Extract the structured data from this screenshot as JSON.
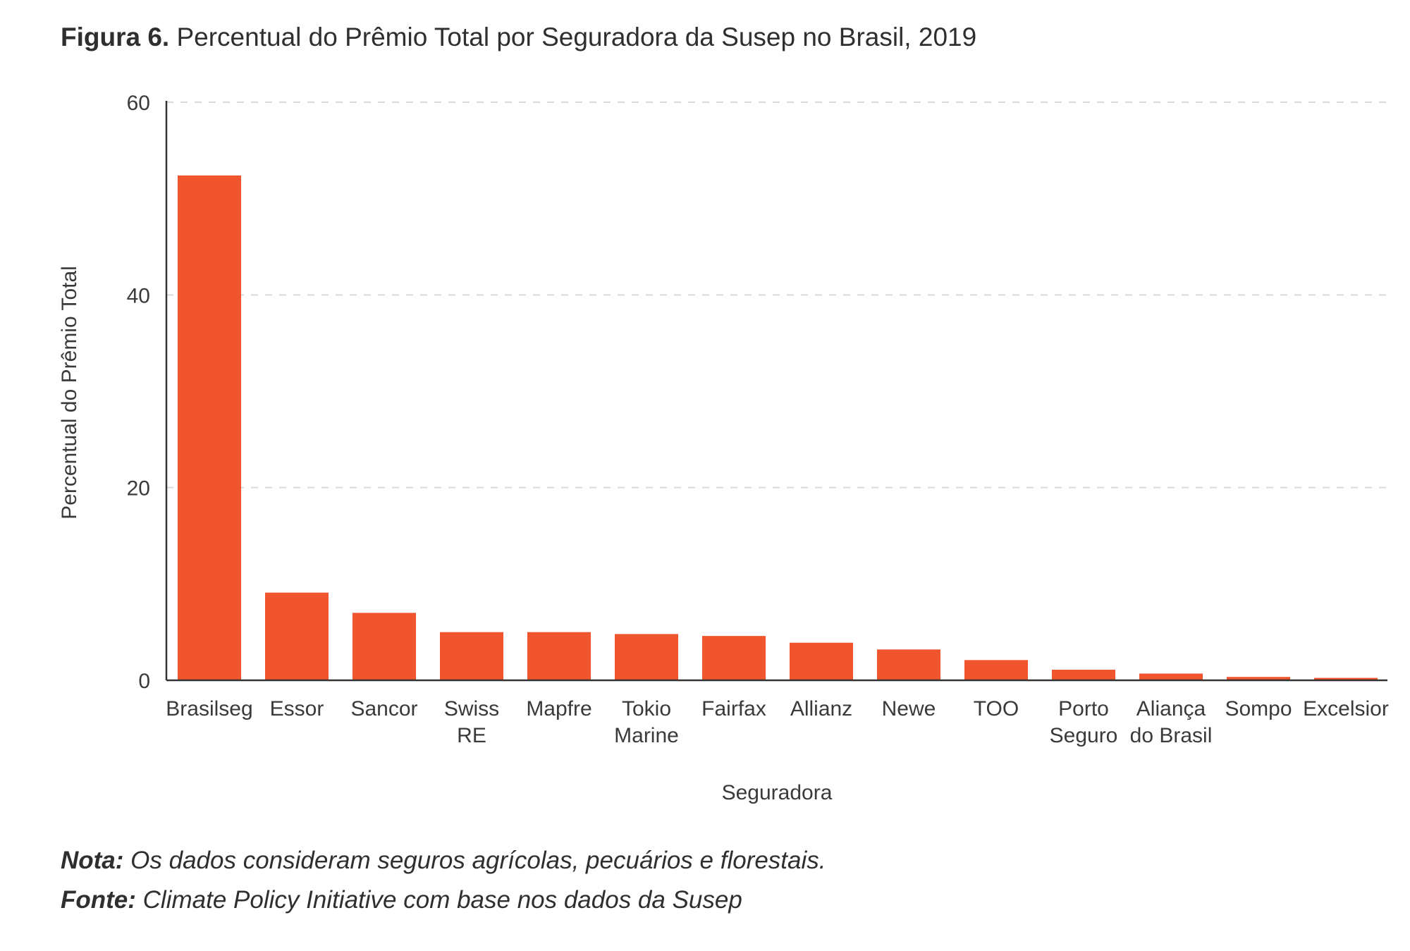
{
  "title": {
    "figure_label": "Figura 6.",
    "text": "Percentual do Prêmio Total por Seguradora da Susep no Brasil, 2019"
  },
  "colors": {
    "bar": "#f0552d",
    "axis": "#333333",
    "grid": "#d9d9d9",
    "text": "#3a3a3a"
  },
  "chart_data": {
    "type": "bar",
    "title": "Percentual do Prêmio Total por Seguradora da Susep no Brasil, 2019",
    "xlabel": "Seguradora",
    "ylabel": "Percentual do Prêmio Total",
    "ylim": [
      0,
      60
    ],
    "yticks": [
      "0",
      "20",
      "40",
      "60"
    ],
    "grid": "horizontal dashed",
    "legend": "none",
    "categories": [
      [
        "Brasilseg"
      ],
      [
        "Essor"
      ],
      [
        "Sancor"
      ],
      [
        "Swiss",
        "RE"
      ],
      [
        "Mapfre"
      ],
      [
        "Tokio",
        "Marine"
      ],
      [
        "Fairfax"
      ],
      [
        "Allianz"
      ],
      [
        "Newe"
      ],
      [
        "TOO"
      ],
      [
        "Porto",
        "Seguro"
      ],
      [
        "Aliança",
        "do Brasil"
      ],
      [
        "Sompo"
      ],
      [
        "Excelsior"
      ]
    ],
    "values": [
      52.4,
      9.1,
      7.0,
      5.0,
      5.0,
      4.8,
      4.6,
      3.9,
      3.2,
      2.1,
      1.1,
      0.7,
      0.35,
      0.25
    ]
  },
  "notes": {
    "nota_label": "Nota:",
    "nota_text": "Os dados consideram seguros agrícolas, pecuários e florestais.",
    "fonte_label": "Fonte:",
    "fonte_text": "Climate Policy Initiative com base nos dados da Susep"
  }
}
